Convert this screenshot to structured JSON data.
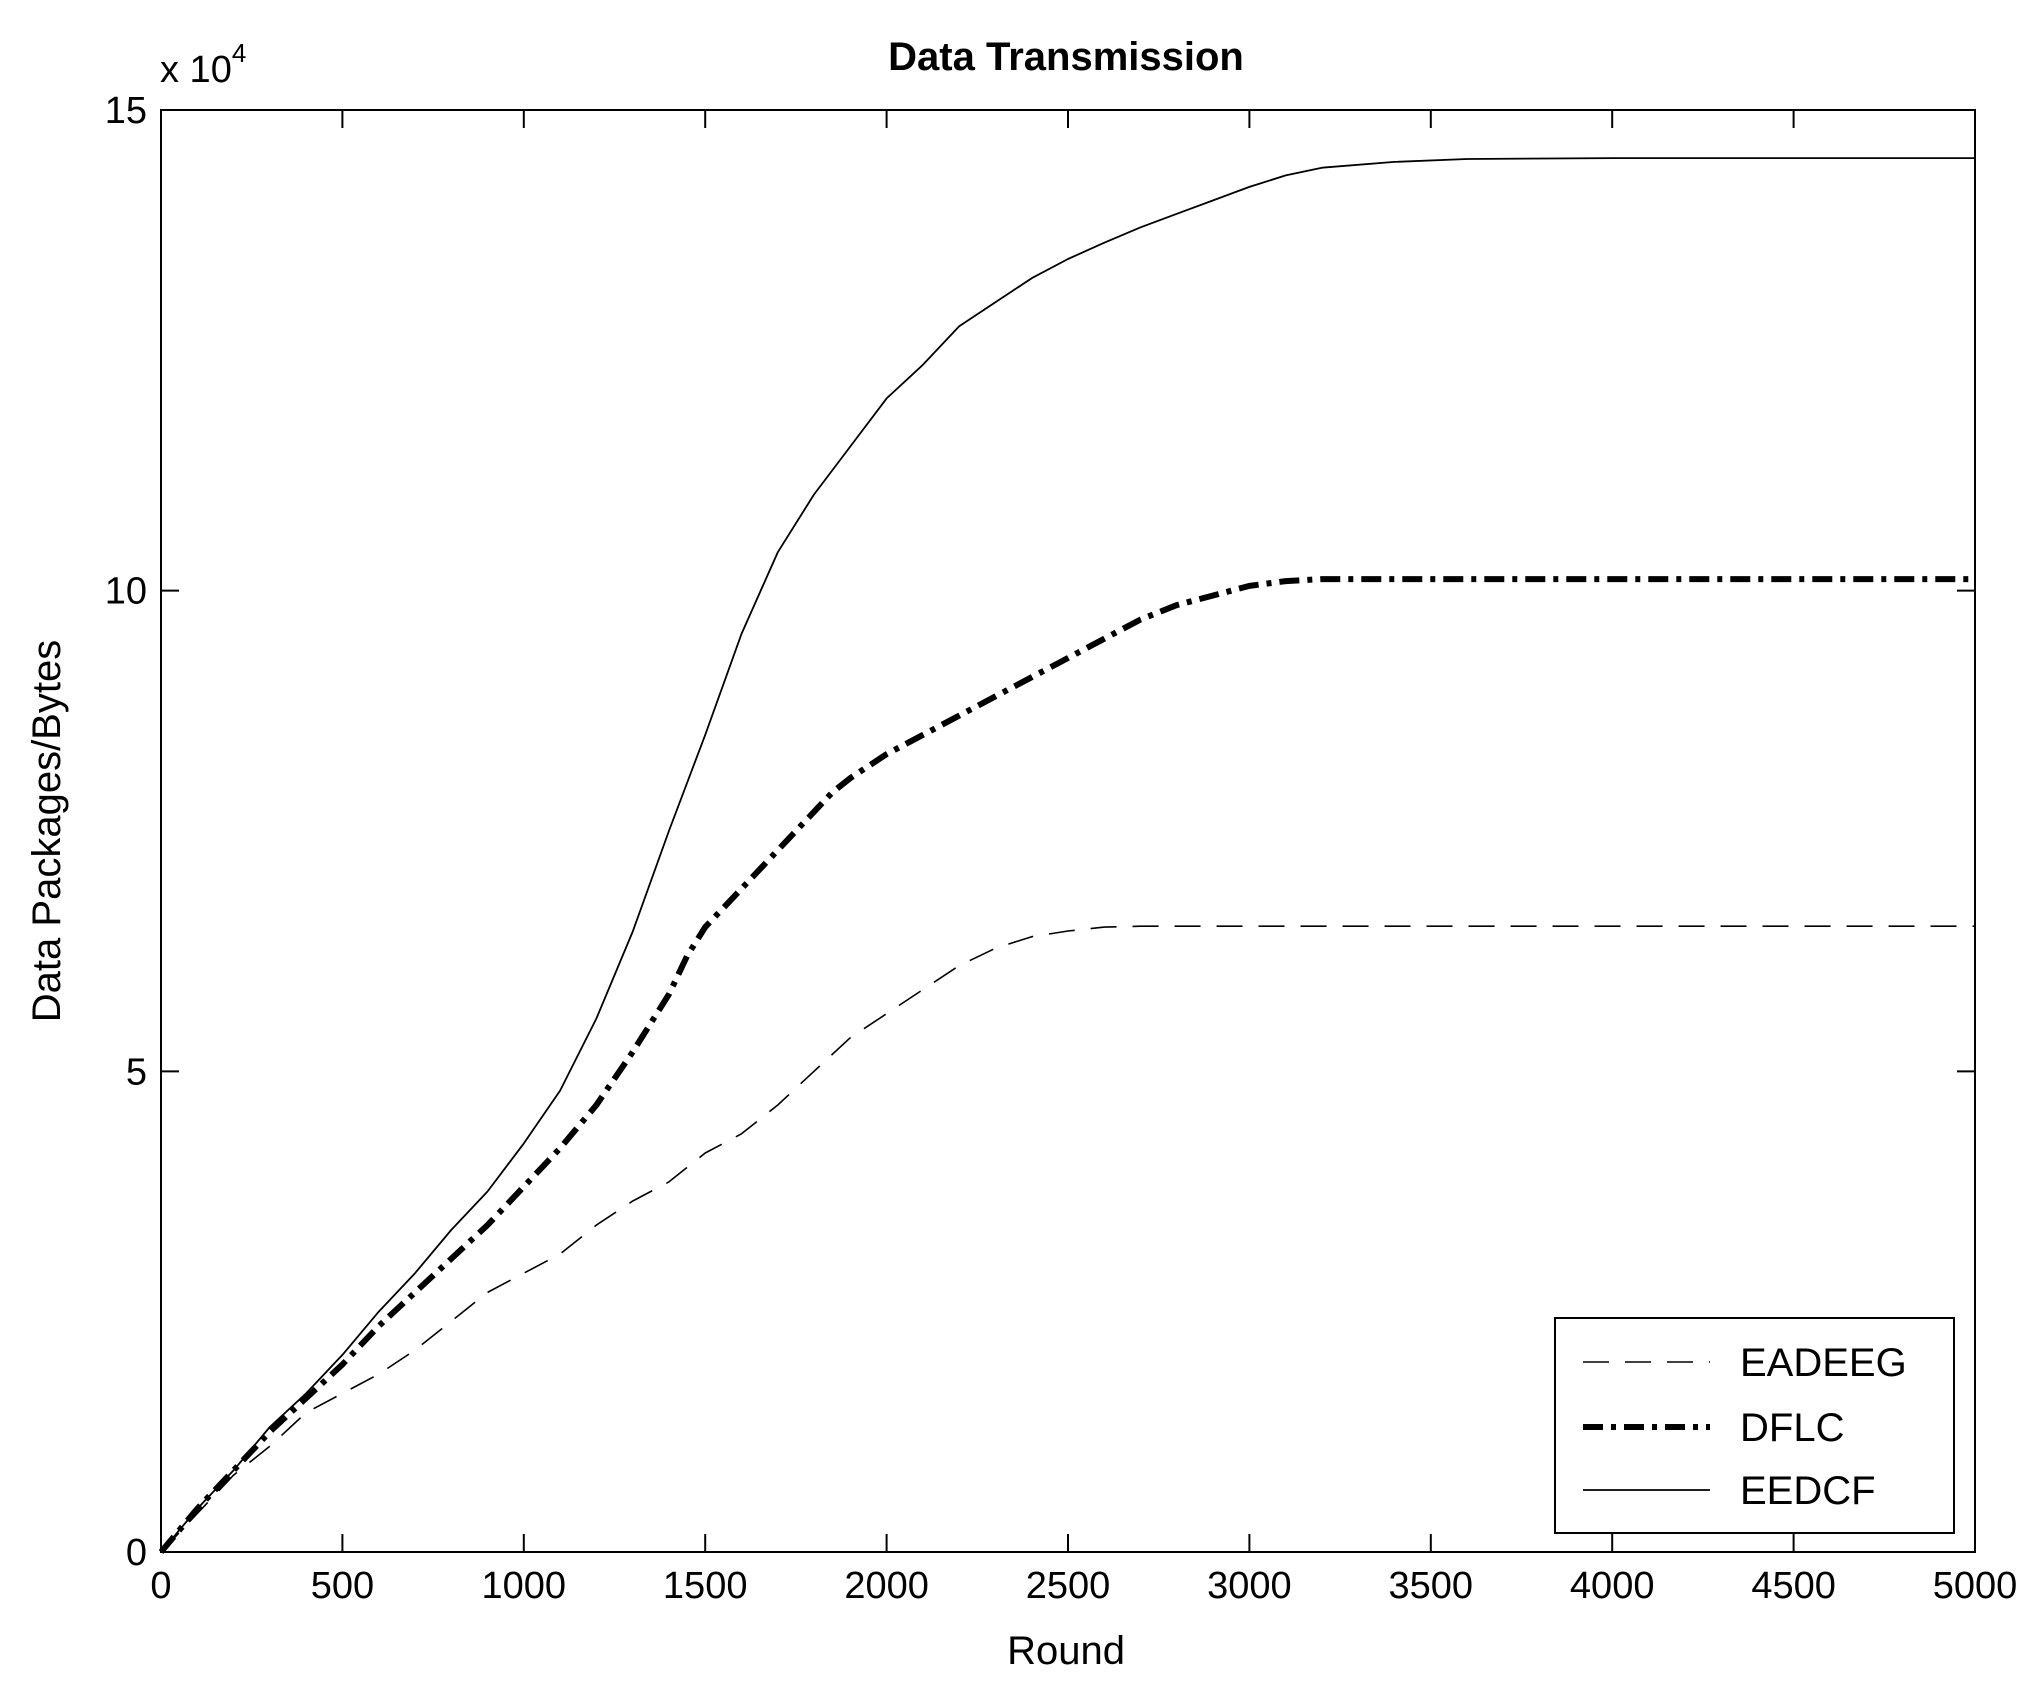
{
  "chart_data": {
    "type": "line",
    "title": "Data Transmission",
    "xlabel": "Round",
    "ylabel": "Data Packages/Bytes",
    "y_multiplier": {
      "base": "x 10",
      "exponent": "4"
    },
    "xlim": [
      0,
      5000
    ],
    "ylim": [
      0,
      150000
    ],
    "x_ticks": [
      0,
      500,
      1000,
      1500,
      2000,
      2500,
      3000,
      3500,
      4000,
      4500,
      5000
    ],
    "x_tick_labels": [
      "0",
      "500",
      "1000",
      "1500",
      "2000",
      "2500",
      "3000",
      "3500",
      "4000",
      "4500",
      "5000"
    ],
    "y_ticks": [
      0,
      50000,
      100000,
      150000
    ],
    "y_tick_labels": [
      "0",
      "5",
      "10",
      "15"
    ],
    "grid": false,
    "legend_position": "bottom-right",
    "series": [
      {
        "name": "EADEEG",
        "style": "dashed",
        "color": "#000000",
        "x": [
          0,
          100,
          200,
          300,
          400,
          500,
          600,
          700,
          800,
          900,
          1000,
          1100,
          1200,
          1300,
          1400,
          1500,
          1600,
          1700,
          1800,
          1900,
          2000,
          2100,
          2200,
          2300,
          2400,
          2500,
          2600,
          2700,
          3000,
          3500,
          4000,
          4500,
          5000
        ],
        "y": [
          0,
          4000,
          8000,
          11000,
          14500,
          16500,
          18500,
          21000,
          24000,
          27000,
          29000,
          31000,
          34000,
          36500,
          38500,
          41500,
          43500,
          46500,
          50000,
          53500,
          56000,
          58500,
          61000,
          62800,
          64000,
          64600,
          65000,
          65100,
          65100,
          65100,
          65100,
          65100,
          65100
        ]
      },
      {
        "name": "DFLC",
        "style": "dashdot",
        "color": "#000000",
        "x": [
          0,
          100,
          200,
          300,
          400,
          500,
          600,
          700,
          800,
          900,
          1000,
          1100,
          1200,
          1300,
          1400,
          1450,
          1500,
          1600,
          1700,
          1800,
          1850,
          1900,
          2000,
          2100,
          2200,
          2300,
          2400,
          2500,
          2600,
          2700,
          2800,
          2900,
          3000,
          3100,
          3200,
          3500,
          4000,
          4500,
          5000
        ],
        "y": [
          0,
          4500,
          8500,
          12500,
          16000,
          19500,
          23500,
          27000,
          30500,
          34000,
          38000,
          42000,
          46500,
          52000,
          58000,
          62000,
          65000,
          69000,
          73000,
          77000,
          79000,
          80500,
          83000,
          85000,
          87000,
          89000,
          91000,
          93000,
          95000,
          97000,
          98500,
          99500,
          100500,
          101000,
          101200,
          101200,
          101200,
          101200,
          101200
        ]
      },
      {
        "name": "EEDCF",
        "style": "solid",
        "color": "#000000",
        "x": [
          0,
          100,
          200,
          300,
          400,
          500,
          600,
          700,
          800,
          900,
          1000,
          1100,
          1200,
          1300,
          1400,
          1500,
          1600,
          1700,
          1800,
          1900,
          2000,
          2100,
          2200,
          2300,
          2400,
          2500,
          2600,
          2700,
          2800,
          2900,
          3000,
          3100,
          3200,
          3400,
          3600,
          4000,
          4500,
          5000
        ],
        "y": [
          0,
          4500,
          8500,
          13000,
          16500,
          20500,
          25000,
          29000,
          33500,
          37500,
          42500,
          48000,
          55500,
          64500,
          75000,
          85000,
          95500,
          104000,
          110000,
          115000,
          120000,
          123500,
          127500,
          130000,
          132500,
          134500,
          136200,
          137800,
          139200,
          140600,
          142000,
          143200,
          144000,
          144600,
          144900,
          145000,
          145000,
          145000
        ]
      }
    ]
  }
}
